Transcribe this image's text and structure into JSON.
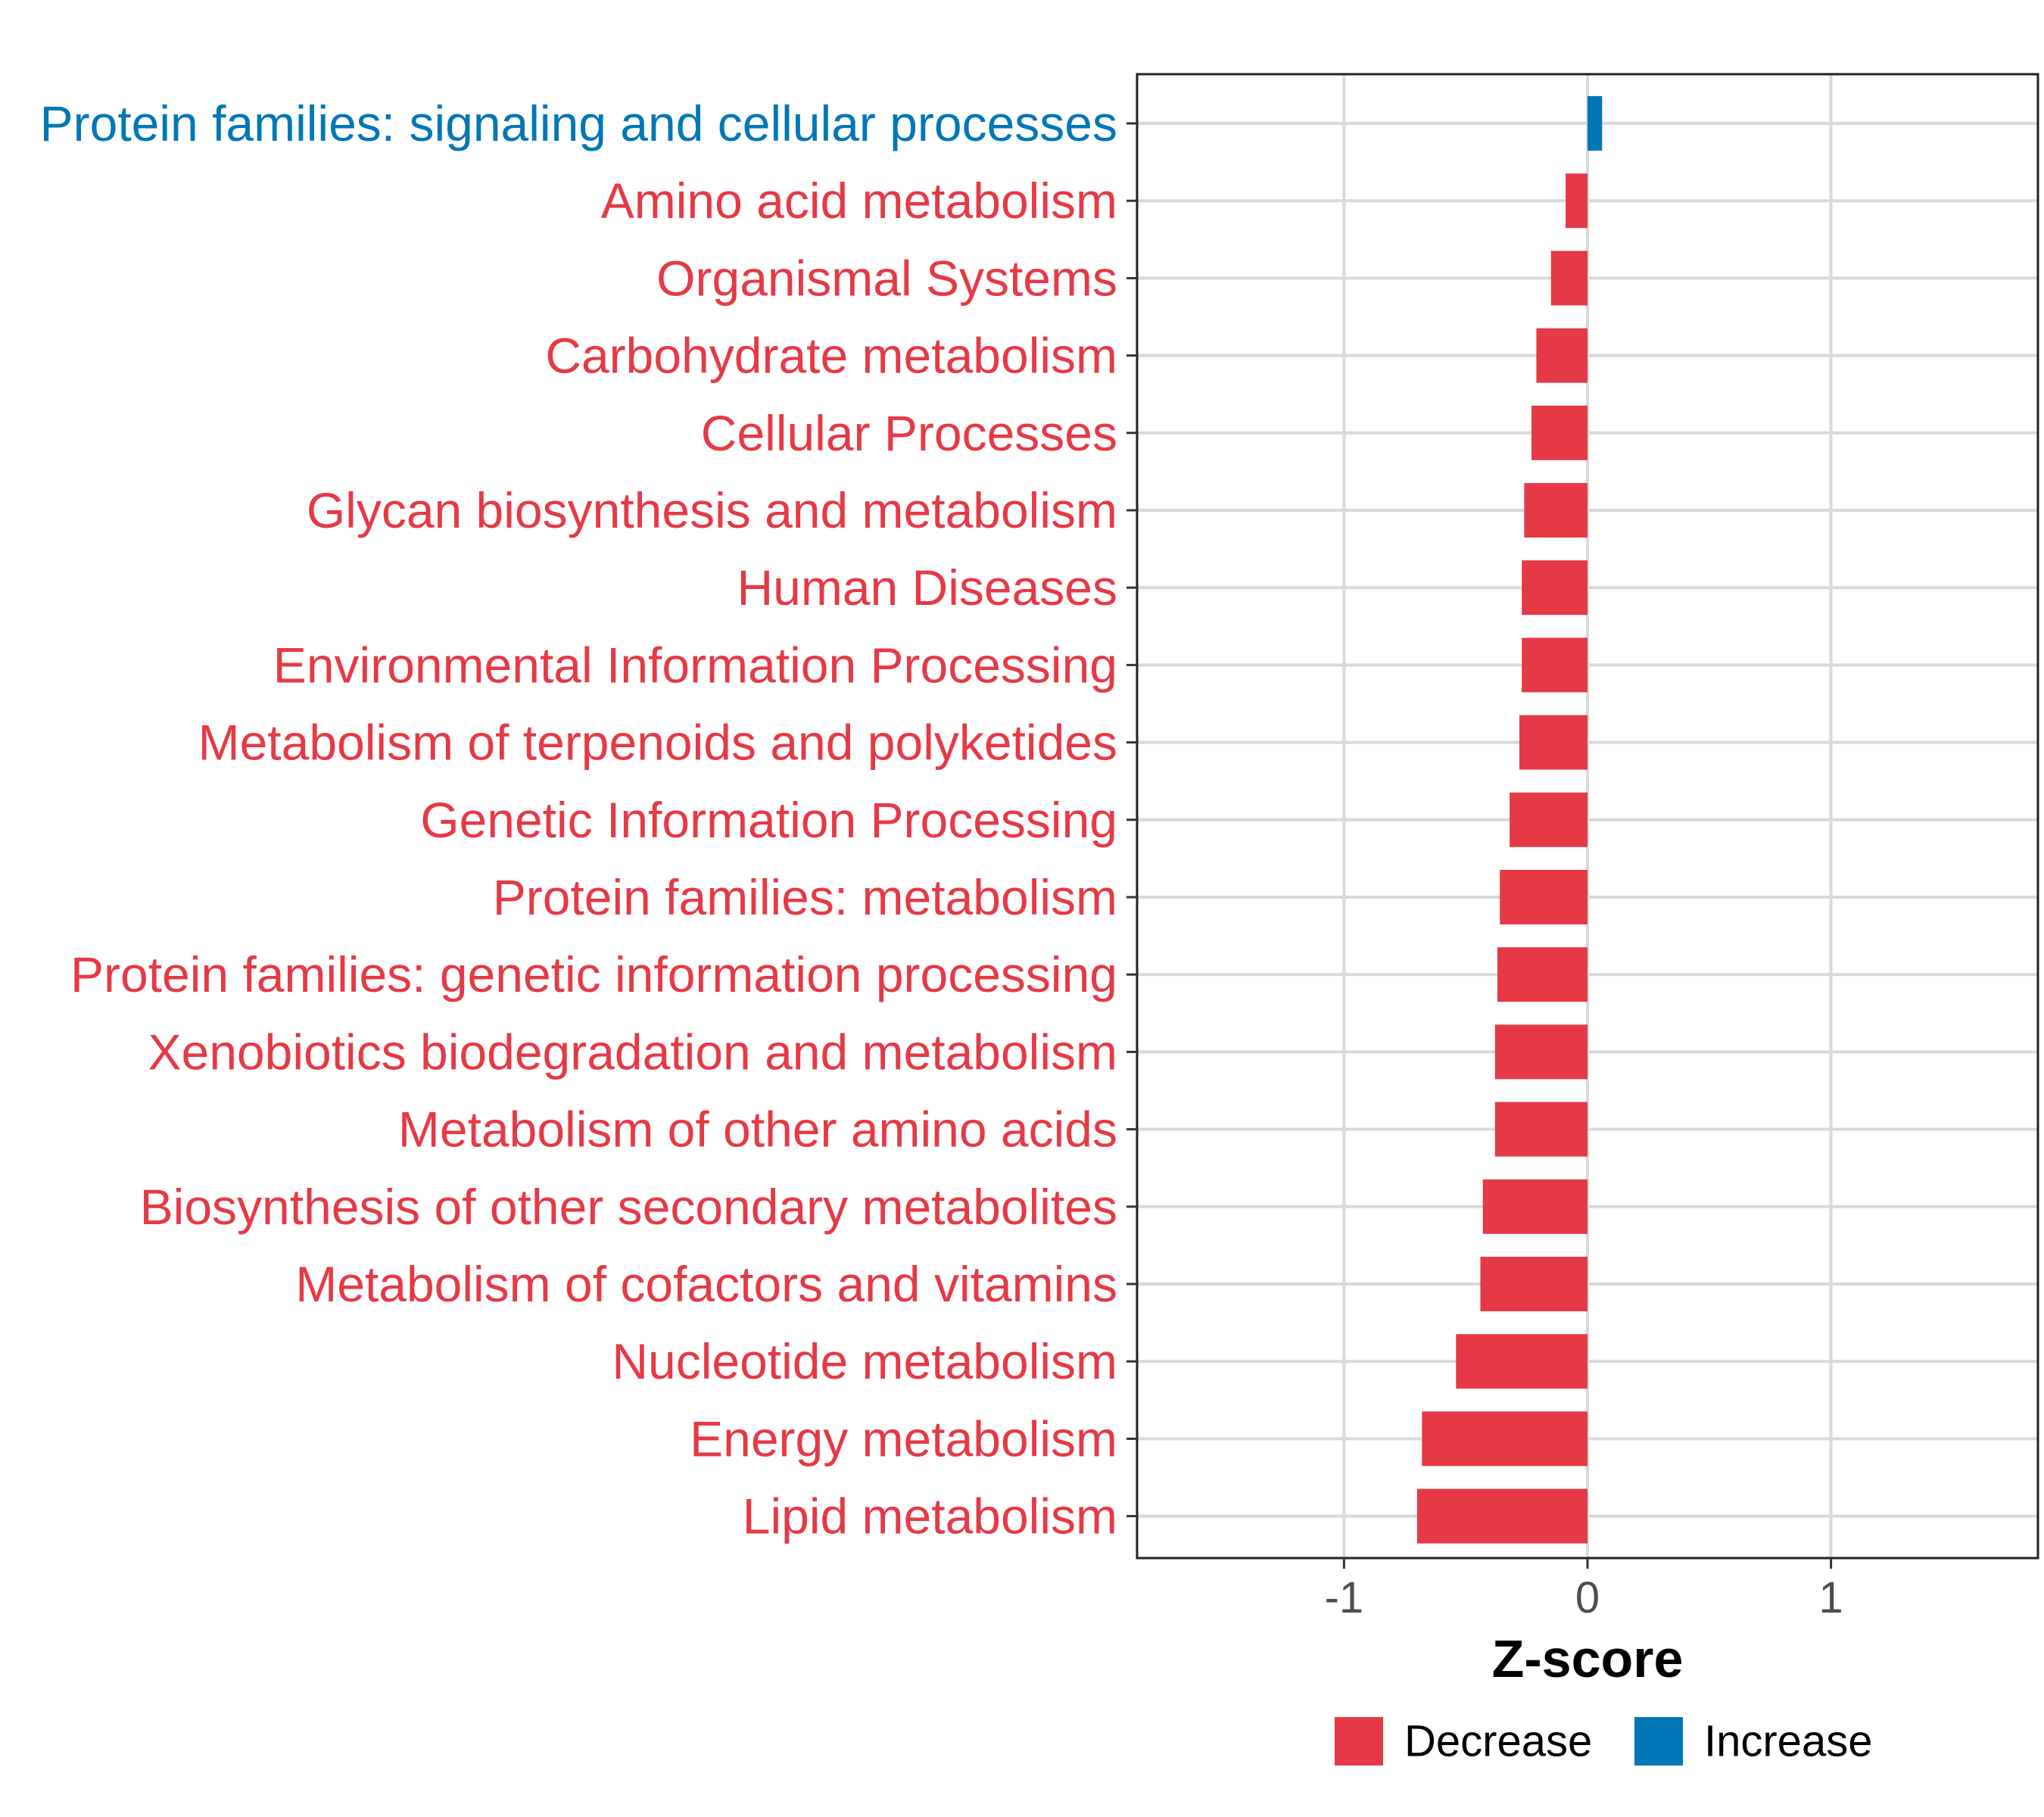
{
  "chart_data": {
    "type": "bar",
    "orientation": "horizontal",
    "title": "",
    "xlabel": "Z-score",
    "ylabel": "",
    "xlim": [
      -1.85,
      1.85
    ],
    "xticks": [
      -1,
      0,
      1
    ],
    "xtick_labels": [
      "-1",
      "0",
      "1"
    ],
    "grid": true,
    "legend_position": "bottom",
    "colors": {
      "Decrease": "#E63946",
      "Increase": "#0077B6"
    },
    "legend": [
      {
        "label": "Decrease",
        "color": "#E63946"
      },
      {
        "label": "Increase",
        "color": "#0077B6"
      }
    ],
    "categories": [
      "Protein families: signaling and cellular processes",
      "Amino acid metabolism",
      "Organismal Systems",
      "Carbohydrate metabolism",
      "Cellular Processes",
      "Glycan biosynthesis and metabolism",
      "Human Diseases",
      "Environmental Information Processing",
      "Metabolism of terpenoids and polyketides",
      "Genetic Information Processing",
      "Protein families: metabolism",
      "Protein families: genetic information processing",
      "Xenobiotics biodegradation and metabolism",
      "Metabolism of other amino acids",
      "Biosynthesis of other secondary metabolites",
      "Metabolism of cofactors and vitamins",
      "Nucleotide metabolism",
      "Energy metabolism",
      "Lipid metabolism"
    ],
    "values": [
      0.06,
      -0.09,
      -0.15,
      -0.21,
      -0.23,
      -0.26,
      -0.27,
      -0.27,
      -0.28,
      -0.32,
      -0.36,
      -0.37,
      -0.38,
      -0.38,
      -0.43,
      -0.44,
      -0.54,
      -0.68,
      -0.7
    ],
    "groups": [
      "Increase",
      "Decrease",
      "Decrease",
      "Decrease",
      "Decrease",
      "Decrease",
      "Decrease",
      "Decrease",
      "Decrease",
      "Decrease",
      "Decrease",
      "Decrease",
      "Decrease",
      "Decrease",
      "Decrease",
      "Decrease",
      "Decrease",
      "Decrease",
      "Decrease"
    ]
  }
}
